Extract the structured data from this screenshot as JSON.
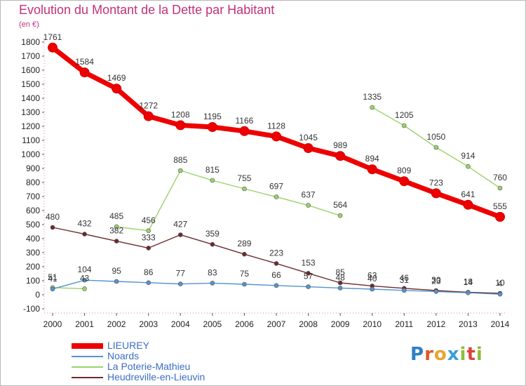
{
  "title": "Evolution du Montant de la Dette par Habitant",
  "subtitle": "(en €)",
  "brand": {
    "letters": [
      {
        "ch": "P",
        "color": "#2f7fc7"
      },
      {
        "ch": "r",
        "color": "#e3572a"
      },
      {
        "ch": "o",
        "color": "#e8a630"
      },
      {
        "ch": "x",
        "color": "#3a9fd8"
      },
      {
        "ch": "i",
        "color": "#8dbd3a"
      },
      {
        "ch": "t",
        "color": "#d9463a"
      },
      {
        "ch": "i",
        "color": "#8dbd3a"
      }
    ]
  },
  "chart_data": {
    "type": "line",
    "x": [
      "2000",
      "2001",
      "2002",
      "2003",
      "2004",
      "2005",
      "2006",
      "2007",
      "2008",
      "2009",
      "2010",
      "2011",
      "2012",
      "2013",
      "2014"
    ],
    "y_ticks": [
      "-100",
      "0",
      "100",
      "200",
      "300",
      "400",
      "500",
      "600",
      "700",
      "800",
      "900",
      "1000",
      "1100",
      "1200",
      "1300",
      "1400",
      "1500",
      "1600",
      "1700",
      "1800"
    ],
    "ylim": [
      -100,
      1800
    ],
    "grid": false,
    "legend_position": "bottom-left",
    "series": [
      {
        "name": "LIEUREY",
        "color": "#ee0000",
        "width": 7,
        "values": [
          1761,
          1584,
          1469,
          1272,
          1208,
          1195,
          1166,
          1128,
          1045,
          989,
          894,
          809,
          723,
          641,
          555
        ],
        "labels": [
          "1761",
          "1584",
          "1469",
          "1272",
          "1208",
          "1195",
          "1166",
          "1128",
          "1045",
          "989",
          "894",
          "809",
          "723",
          "641",
          "555"
        ]
      },
      {
        "name": "Noards",
        "color": "#5593cf",
        "width": 1.4,
        "values": [
          41,
          104,
          95,
          86,
          77,
          83,
          75,
          66,
          57,
          48,
          40,
          31,
          23,
          14,
          4
        ],
        "labels": [
          "41",
          "104",
          "95",
          "86",
          "77",
          "83",
          "75",
          "66",
          "57",
          "48",
          "40",
          "31",
          "23",
          "14",
          "4"
        ]
      },
      {
        "name": "La Poterie-Mathieu",
        "color": "#9ad36a",
        "width": 1.4,
        "break_after": [
          1,
          9
        ],
        "values": [
          51,
          43,
          485,
          456,
          885,
          815,
          755,
          697,
          637,
          564,
          1335,
          1205,
          1050,
          914,
          760
        ],
        "labels": [
          "51",
          "43",
          "485",
          "456",
          "885",
          "815",
          "755",
          "697",
          "637",
          "564",
          "1335",
          "1205",
          "1050",
          "914",
          "760"
        ]
      },
      {
        "name": "Heudreville-en-Lieuvin",
        "color": "#6e2a2a",
        "width": 1.4,
        "values": [
          480,
          432,
          382,
          333,
          427,
          359,
          289,
          223,
          153,
          85,
          63,
          46,
          30,
          18,
          10
        ],
        "labels": [
          "480",
          "432",
          "382",
          "333",
          "427",
          "359",
          "289",
          "223",
          "153",
          "85",
          "63",
          "46",
          "30",
          "18",
          "10"
        ]
      }
    ]
  }
}
